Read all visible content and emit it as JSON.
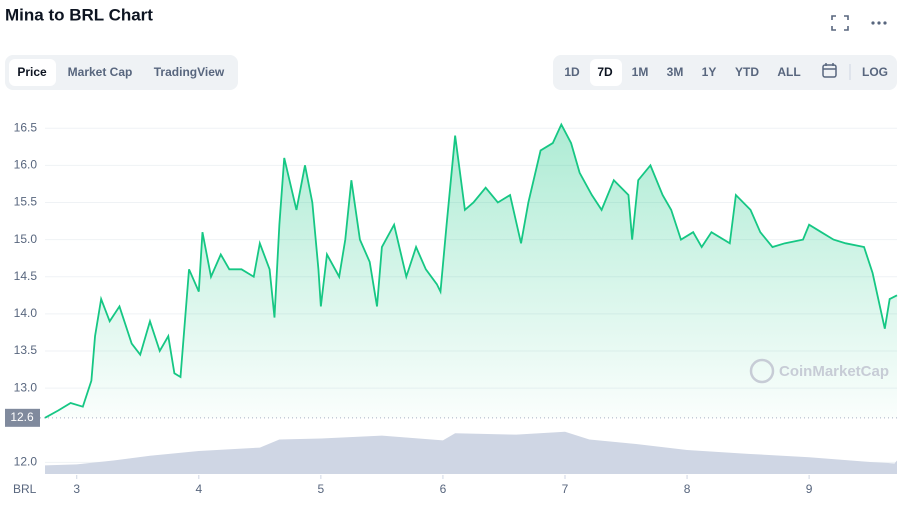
{
  "ui": {
    "title": "Mina to BRL Chart",
    "tabs": [
      "Price",
      "Market Cap",
      "TradingView"
    ],
    "ranges": [
      "1D",
      "7D",
      "1M",
      "3M",
      "1Y",
      "YTD",
      "ALL"
    ],
    "log": "LOG",
    "watermark": "CoinMarketCap"
  },
  "chart_data": {
    "type": "line",
    "color": "#16c784",
    "currency": "BRL",
    "current_price": {
      "value": 12.6,
      "label": "12.6"
    },
    "xlim": [
      2.74,
      9.72
    ],
    "xticks": [
      3,
      4,
      5,
      6,
      7,
      8,
      9
    ],
    "ylim": [
      11.83,
      16.88
    ],
    "yticks": [
      {
        "value": 12.0,
        "label": "12.0"
      },
      {
        "value": 13.0,
        "label": "13.0"
      },
      13.5,
      {
        "value": 14.0,
        "label": "14.0"
      },
      14.5,
      {
        "value": 15.0,
        "label": "15.0"
      },
      15.5,
      {
        "value": 16.0,
        "label": "16.0"
      },
      16.5
    ],
    "grid": true,
    "series": [
      {
        "name": "Price",
        "color": "#16c784",
        "x": [
          2.74,
          2.85,
          2.95,
          3.05,
          3.12,
          3.15,
          3.2,
          3.27,
          3.35,
          3.45,
          3.52,
          3.6,
          3.68,
          3.75,
          3.8,
          3.85,
          3.92,
          4.0,
          4.03,
          4.1,
          4.18,
          4.25,
          4.35,
          4.45,
          4.5,
          4.58,
          4.62,
          4.66,
          4.7,
          4.8,
          4.87,
          4.93,
          4.98,
          5.0,
          5.05,
          5.15,
          5.2,
          5.25,
          5.32,
          5.4,
          5.46,
          5.5,
          5.6,
          5.7,
          5.78,
          5.86,
          5.95,
          5.98,
          6.03,
          6.1,
          6.18,
          6.25,
          6.35,
          6.45,
          6.55,
          6.64,
          6.7,
          6.8,
          6.9,
          6.97,
          7.05,
          7.12,
          7.22,
          7.3,
          7.4,
          7.52,
          7.55,
          7.6,
          7.7,
          7.8,
          7.87,
          7.95,
          8.05,
          8.12,
          8.2,
          8.35,
          8.4,
          8.52,
          8.6,
          8.7,
          8.8,
          8.95,
          9.0,
          9.1,
          9.2,
          9.3,
          9.45,
          9.52,
          9.58,
          9.62,
          9.66,
          9.72
        ],
        "values": [
          12.6,
          12.7,
          12.8,
          12.75,
          13.1,
          13.7,
          14.2,
          13.9,
          14.1,
          13.6,
          13.45,
          13.9,
          13.5,
          13.7,
          13.2,
          13.15,
          14.6,
          14.3,
          15.1,
          14.5,
          14.8,
          14.6,
          14.6,
          14.5,
          14.95,
          14.6,
          13.95,
          15.2,
          16.1,
          15.4,
          16.0,
          15.5,
          14.6,
          14.1,
          14.8,
          14.5,
          15.0,
          15.8,
          15.0,
          14.7,
          14.1,
          14.9,
          15.2,
          14.5,
          14.9,
          14.6,
          14.4,
          14.3,
          15.2,
          16.4,
          15.4,
          15.5,
          15.7,
          15.5,
          15.6,
          14.95,
          15.5,
          16.2,
          16.3,
          16.55,
          16.3,
          15.9,
          15.6,
          15.4,
          15.8,
          15.6,
          15.0,
          15.8,
          16.0,
          15.6,
          15.4,
          15.0,
          15.1,
          14.9,
          15.1,
          14.95,
          15.6,
          15.4,
          15.1,
          14.9,
          14.95,
          15.0,
          15.2,
          15.1,
          15.0,
          14.95,
          14.9,
          14.55,
          14.1,
          13.8,
          14.2,
          14.25
        ]
      }
    ],
    "volume": {
      "color": "#cfd6e4",
      "ylim": [
        0,
        100
      ],
      "x": [
        2.74,
        3.0,
        3.3,
        3.6,
        4.0,
        4.5,
        4.66,
        5.0,
        5.5,
        6.0,
        6.1,
        6.6,
        7.0,
        7.2,
        7.6,
        8.0,
        8.5,
        9.0,
        9.5,
        9.7,
        9.72
      ],
      "values": [
        18,
        20,
        28,
        38,
        48,
        55,
        72,
        74,
        80,
        70,
        85,
        82,
        88,
        72,
        62,
        50,
        42,
        35,
        25,
        22,
        28
      ]
    }
  }
}
